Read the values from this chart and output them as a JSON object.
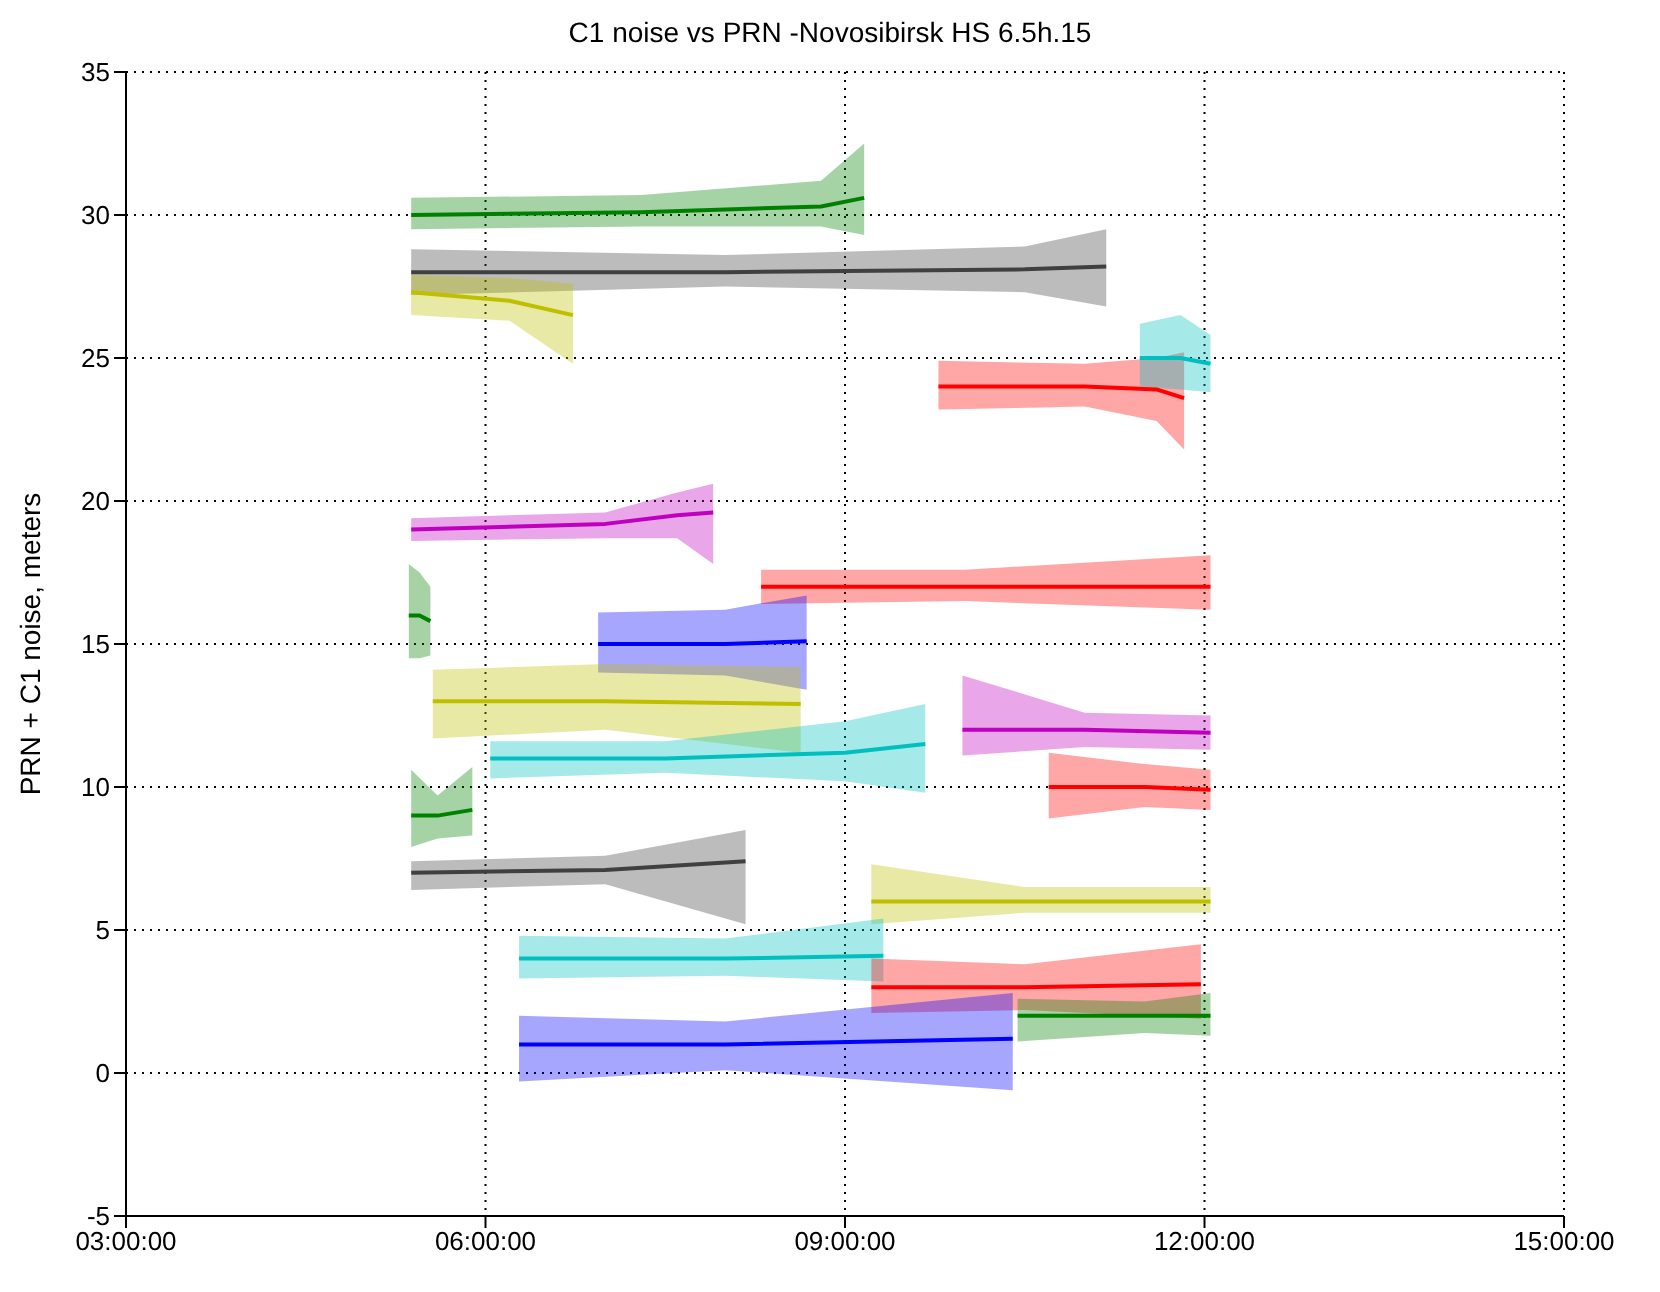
{
  "chart_data": {
    "type": "line",
    "title": "C1 noise vs PRN -Novosibirsk HS 6.5h.15",
    "ylabel": "PRN + C1 noise, meters",
    "xlim": [
      3,
      15
    ],
    "xticks": [
      {
        "value": 3,
        "label": "03:00:00"
      },
      {
        "value": 6,
        "label": "06:00:00"
      },
      {
        "value": 9,
        "label": "09:00:00"
      },
      {
        "value": 12,
        "label": "12:00:00"
      },
      {
        "value": 15,
        "label": "15:00:00"
      }
    ],
    "ylim": [
      -5,
      35
    ],
    "yticks": [
      -5,
      0,
      5,
      10,
      15,
      20,
      25,
      30,
      35
    ],
    "grid": true,
    "legend": false,
    "series": [
      {
        "color": "#008000",
        "x": [
          5.38,
          7.3,
          8.8,
          9.16
        ],
        "values": [
          30,
          30.1,
          30.3,
          30.6
        ],
        "lower": [
          29.5,
          29.6,
          29.6,
          29.3
        ],
        "upper": [
          30.6,
          30.7,
          31.2,
          32.5
        ]
      },
      {
        "color": "#404040",
        "x": [
          5.38,
          8,
          10.5,
          11.18
        ],
        "values": [
          28,
          28,
          28.1,
          28.2
        ],
        "lower": [
          27.2,
          27.5,
          27.3,
          26.8
        ],
        "upper": [
          28.8,
          28.6,
          28.9,
          29.5
        ]
      },
      {
        "color": "#bfbf00",
        "x": [
          5.38,
          6.2,
          6.73
        ],
        "values": [
          27.3,
          27,
          26.5
        ],
        "lower": [
          26.5,
          26.3,
          24.8
        ],
        "upper": [
          27.9,
          27.8,
          27.6
        ]
      },
      {
        "color": "#ff0000",
        "x": [
          9.78,
          11,
          11.6,
          11.83
        ],
        "values": [
          24,
          24,
          23.9,
          23.6
        ],
        "lower": [
          23.2,
          23.3,
          22.8,
          21.8
        ],
        "upper": [
          24.9,
          24.8,
          25,
          25.2
        ]
      },
      {
        "color": "#00bfbf",
        "x": [
          11.46,
          11.8,
          12.05
        ],
        "values": [
          25,
          25,
          24.8
        ],
        "lower": [
          24,
          23.9,
          23.8
        ],
        "upper": [
          26.2,
          26.5,
          25.8
        ]
      },
      {
        "color": "#bf00bf",
        "x": [
          5.38,
          7,
          7.6,
          7.9
        ],
        "values": [
          19,
          19.2,
          19.5,
          19.6
        ],
        "lower": [
          18.6,
          18.7,
          18.7,
          17.8
        ],
        "upper": [
          19.4,
          19.6,
          20.3,
          20.6
        ]
      },
      {
        "color": "#007f00",
        "x": [
          5.36,
          5.45,
          5.54
        ],
        "values": [
          16,
          16,
          15.8
        ],
        "lower": [
          14.5,
          14.5,
          14.6
        ],
        "upper": [
          17.8,
          17.5,
          17
        ]
      },
      {
        "color": "#ff0000",
        "x": [
          8.3,
          10,
          12.05
        ],
        "values": [
          17,
          17,
          17
        ],
        "lower": [
          16.4,
          16.5,
          16.2
        ],
        "upper": [
          17.6,
          17.6,
          18.1
        ]
      },
      {
        "color": "#0000ff",
        "x": [
          6.94,
          8,
          8.68
        ],
        "values": [
          15,
          15,
          15.1
        ],
        "lower": [
          14,
          13.9,
          13.4
        ],
        "upper": [
          16.1,
          16.2,
          16.7
        ]
      },
      {
        "color": "#bfbf00",
        "x": [
          5.56,
          7,
          8.63
        ],
        "values": [
          13,
          13,
          12.9
        ],
        "lower": [
          11.7,
          12,
          11.2
        ],
        "upper": [
          14.1,
          14.3,
          14.2
        ]
      },
      {
        "color": "#00bfbf",
        "x": [
          6.04,
          7.5,
          9,
          9.67
        ],
        "values": [
          11,
          11,
          11.2,
          11.5
        ],
        "lower": [
          10.3,
          10.5,
          10.2,
          9.8
        ],
        "upper": [
          11.6,
          11.6,
          12.3,
          12.9
        ]
      },
      {
        "color": "#bf00bf",
        "x": [
          9.98,
          11,
          12.05
        ],
        "values": [
          12,
          12,
          11.9
        ],
        "lower": [
          11.1,
          11.4,
          11.3
        ],
        "upper": [
          13.9,
          12.6,
          12.5
        ]
      },
      {
        "color": "#ff0000",
        "x": [
          10.7,
          11.5,
          12.05
        ],
        "values": [
          10,
          10,
          9.9
        ],
        "lower": [
          8.9,
          9.3,
          9.2
        ],
        "upper": [
          11.2,
          10.8,
          10.6
        ]
      },
      {
        "color": "#008100",
        "x": [
          5.38,
          5.6,
          5.89
        ],
        "values": [
          9,
          9,
          9.2
        ],
        "lower": [
          7.9,
          8.2,
          8.3
        ],
        "upper": [
          10.6,
          9.7,
          10.7
        ]
      },
      {
        "color": "#404040",
        "x": [
          5.38,
          7,
          8.17
        ],
        "values": [
          7,
          7.1,
          7.4
        ],
        "lower": [
          6.4,
          6.6,
          5.2
        ],
        "upper": [
          7.4,
          7.6,
          8.5
        ]
      },
      {
        "color": "#bfbf00",
        "x": [
          9.22,
          10.5,
          12.05
        ],
        "values": [
          6,
          6,
          6
        ],
        "lower": [
          5.2,
          5.6,
          5.6
        ],
        "upper": [
          7.3,
          6.5,
          6.5
        ]
      },
      {
        "color": "#00bfbf",
        "x": [
          6.28,
          8,
          9.32
        ],
        "values": [
          4,
          4,
          4.1
        ],
        "lower": [
          3.3,
          3.4,
          3.2
        ],
        "upper": [
          4.8,
          4.7,
          5.4
        ]
      },
      {
        "color": "#ff0000",
        "x": [
          9.22,
          10.5,
          11.97
        ],
        "values": [
          3,
          3,
          3.1
        ],
        "lower": [
          2.1,
          2.2,
          1.9
        ],
        "upper": [
          4,
          3.8,
          4.5
        ]
      },
      {
        "color": "#0000ff",
        "x": [
          6.28,
          8,
          10.4
        ],
        "values": [
          1,
          1,
          1.2
        ],
        "lower": [
          -0.3,
          0.1,
          -0.6
        ],
        "upper": [
          2,
          1.8,
          2.8
        ]
      },
      {
        "color": "#018000",
        "x": [
          10.44,
          11.5,
          12.05
        ],
        "values": [
          2,
          2,
          2
        ],
        "lower": [
          1.1,
          1.4,
          1.3
        ],
        "upper": [
          2.6,
          2.5,
          2.8
        ]
      }
    ]
  }
}
